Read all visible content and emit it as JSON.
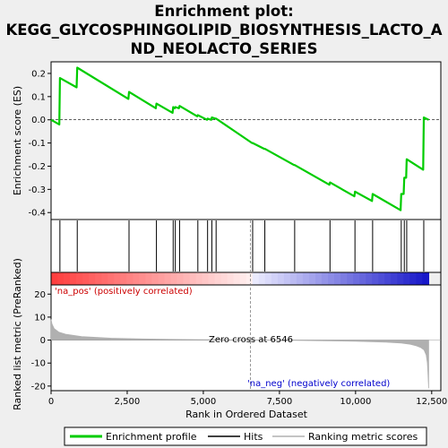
{
  "title_line1": "Enrichment plot:",
  "title_line2": "KEGG_GLYCOSPHINGOLIPID_BIOSYNTHESIS_LACTO_A",
  "title_line3": "ND_NEOLACTO_SERIES",
  "colors": {
    "enrichment": "#00cc00",
    "hits": "#000000",
    "metric": "#b0b0b0",
    "pos_label": "#cc0000",
    "neg_label": "#0000cc",
    "zero_line": "#808080"
  },
  "chart_data": [
    {
      "type": "line",
      "name": "enrichment-profile",
      "ylabel": "Enrichment score (ES)",
      "ylim": [
        -0.43,
        0.25
      ],
      "xlim": [
        0,
        12800
      ],
      "yticks": [
        0.2,
        0.1,
        0.0,
        -0.1,
        -0.2,
        -0.3,
        -0.4
      ],
      "ytick_labels": [
        "0.2",
        "0.1",
        "0.0",
        "-0.1",
        "-0.2",
        "-0.3",
        "-0.4"
      ],
      "grid": false,
      "x": [
        0,
        270,
        290,
        840,
        860,
        2540,
        2560,
        3440,
        3460,
        3990,
        4010,
        4060,
        4080,
        4200,
        4220,
        4800,
        4820,
        5120,
        5140,
        5260,
        5280,
        5400,
        5420,
        6600,
        6620,
        7000,
        7020,
        7980,
        8000,
        9140,
        9160,
        9960,
        9980,
        10540,
        10560,
        11480,
        11500,
        11580,
        11600,
        11660,
        11680,
        12220,
        12240,
        12400
      ],
      "y": [
        0.0,
        -0.02,
        0.18,
        0.14,
        0.225,
        0.09,
        0.12,
        0.05,
        0.07,
        0.03,
        0.055,
        0.05,
        0.055,
        0.05,
        0.06,
        0.015,
        0.02,
        0.0,
        0.005,
        0.0,
        0.01,
        0.005,
        0.005,
        -0.1,
        -0.1,
        -0.125,
        -0.125,
        -0.195,
        -0.195,
        -0.28,
        -0.27,
        -0.33,
        -0.31,
        -0.35,
        -0.32,
        -0.39,
        -0.32,
        -0.32,
        -0.25,
        -0.25,
        -0.17,
        -0.215,
        0.01,
        0.0
      ]
    },
    {
      "type": "hits",
      "name": "hits",
      "positions": [
        290,
        860,
        2560,
        3460,
        4010,
        4080,
        4220,
        4820,
        5140,
        5280,
        5420,
        6620,
        7020,
        8000,
        9160,
        9980,
        10560,
        11500,
        11600,
        11680,
        12240
      ]
    },
    {
      "type": "area",
      "name": "ranking-metric-scores",
      "xlabel": "Rank in Ordered Dataset",
      "ylabel": "Ranked list metric (PreRanked)",
      "ylim": [
        -22,
        24
      ],
      "yticks": [
        20,
        10,
        0,
        -10,
        -20
      ],
      "ytick_labels": [
        "20",
        "10",
        "0",
        "-10",
        "-20"
      ],
      "xticks": [
        0,
        2500,
        5000,
        7500,
        10000,
        12500
      ],
      "xtick_labels": [
        "0",
        "2,500",
        "5,000",
        "7,500",
        "10,000",
        "12,500"
      ],
      "x": [
        0,
        30,
        100,
        250,
        500,
        1000,
        2000,
        3000,
        4000,
        5000,
        6000,
        6546,
        7000,
        8000,
        9000,
        10000,
        11000,
        11500,
        11800,
        12000,
        12150,
        12250,
        12320,
        12360,
        12380,
        12400
      ],
      "y": [
        9.0,
        7.0,
        5.0,
        3.5,
        2.5,
        1.5,
        0.8,
        0.5,
        0.3,
        0.15,
        0.05,
        0.0,
        -0.05,
        -0.15,
        -0.3,
        -0.5,
        -0.9,
        -1.3,
        -1.8,
        -2.5,
        -3.3,
        -4.3,
        -6.5,
        -10.0,
        -15.0,
        -21.0
      ],
      "zero_cross": 6546,
      "zero_cross_label": "Zero cross at 6546",
      "pos_label": "'na_pos' (positively correlated)",
      "neg_label": "'na_neg' (negatively correlated)"
    }
  ],
  "legend": {
    "items": [
      {
        "label": "Enrichment profile",
        "color": "#00cc00"
      },
      {
        "label": "Hits",
        "color": "#000000"
      },
      {
        "label": "Ranking metric scores",
        "color": "#b0b0b0"
      }
    ]
  }
}
